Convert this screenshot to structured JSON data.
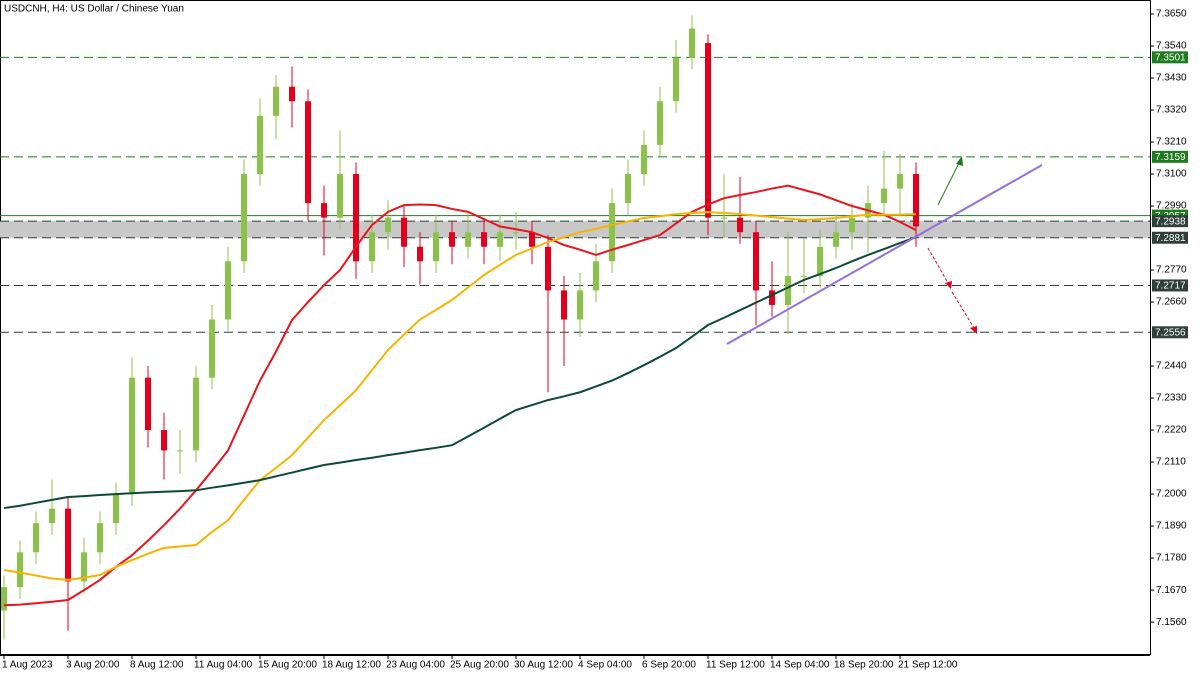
{
  "chart_data": {
    "type": "candlestick",
    "title": "USDCNH, H4:  US Dollar / Chinese Yuan",
    "categories": [
      "1 Aug 2023",
      null,
      null,
      null,
      "3 Aug 20:00",
      null,
      null,
      null,
      "8 Aug 12:00",
      null,
      null,
      null,
      "11 Aug 04:00",
      null,
      null,
      null,
      "15 Aug 20:00",
      null,
      null,
      null,
      "18 Aug 12:00",
      null,
      null,
      null,
      "23 Aug 04:00",
      null,
      null,
      null,
      "25 Aug 20:00",
      null,
      null,
      null,
      "30 Aug 12:00",
      null,
      null,
      null,
      "4 Sep 04:00",
      null,
      null,
      null,
      "6 Sep 20:00",
      null,
      null,
      null,
      "11 Sep 12:00",
      null,
      null,
      null,
      "14 Sep 04:00",
      null,
      null,
      null,
      "18 Sep 20:00",
      null,
      null,
      null,
      "21 Sep 12:00",
      null
    ],
    "open": [
      7.16,
      7.168,
      7.18,
      7.19,
      7.195,
      7.17,
      7.18,
      7.19,
      7.2,
      7.24,
      7.222,
      7.215,
      7.215,
      7.24,
      7.26,
      7.28,
      7.31,
      7.33,
      7.34,
      7.335,
      7.3,
      7.295,
      7.31,
      7.28,
      7.29,
      7.295,
      7.285,
      7.28,
      7.29,
      7.285,
      7.29,
      7.285,
      7.29,
      7.29,
      7.285,
      7.27,
      7.26,
      7.27,
      7.28,
      7.3,
      7.31,
      7.32,
      7.335,
      7.35,
      7.355,
      7.295,
      7.295,
      7.29,
      7.27,
      7.265,
      7.275,
      7.275,
      7.285,
      7.29,
      7.295,
      7.3,
      7.305,
      7.31
    ],
    "high": [
      7.172,
      7.184,
      7.194,
      7.205,
      7.199,
      7.185,
      7.194,
      7.204,
      7.247,
      7.244,
      7.228,
      7.222,
      7.244,
      7.265,
      7.285,
      7.315,
      7.336,
      7.344,
      7.347,
      7.339,
      7.306,
      7.325,
      7.314,
      7.296,
      7.301,
      7.299,
      7.29,
      7.296,
      7.294,
      7.297,
      7.295,
      7.296,
      7.297,
      7.294,
      7.289,
      7.275,
      7.276,
      7.286,
      7.305,
      7.315,
      7.325,
      7.34,
      7.356,
      7.3645,
      7.358,
      7.31,
      7.309,
      7.294,
      7.28,
      7.29,
      7.288,
      7.291,
      7.296,
      7.3,
      7.306,
      7.318,
      7.317,
      7.314
    ],
    "low": [
      7.15,
      7.164,
      7.176,
      7.186,
      7.153,
      7.166,
      7.176,
      7.186,
      7.196,
      7.216,
      7.205,
      7.207,
      7.211,
      7.236,
      7.256,
      7.276,
      7.306,
      7.322,
      7.326,
      7.294,
      7.282,
      7.291,
      7.274,
      7.276,
      7.284,
      7.278,
      7.272,
      7.276,
      7.279,
      7.281,
      7.279,
      7.28,
      7.284,
      7.279,
      7.235,
      7.244,
      7.254,
      7.266,
      7.276,
      7.296,
      7.306,
      7.316,
      7.331,
      7.346,
      7.289,
      7.288,
      7.286,
      7.258,
      7.261,
      7.255,
      7.269,
      7.271,
      7.281,
      7.284,
      7.283,
      7.296,
      7.296,
      7.285
    ],
    "close": [
      7.168,
      7.18,
      7.19,
      7.195,
      7.17,
      7.18,
      7.19,
      7.2,
      7.24,
      7.222,
      7.215,
      7.215,
      7.24,
      7.26,
      7.28,
      7.31,
      7.33,
      7.34,
      7.335,
      7.3,
      7.295,
      7.31,
      7.28,
      7.29,
      7.295,
      7.285,
      7.28,
      7.29,
      7.285,
      7.29,
      7.285,
      7.29,
      7.29,
      7.285,
      7.27,
      7.26,
      7.27,
      7.28,
      7.3,
      7.31,
      7.32,
      7.335,
      7.35,
      7.36,
      7.295,
      7.295,
      7.29,
      7.27,
      7.265,
      7.275,
      7.275,
      7.285,
      7.29,
      7.295,
      7.3,
      7.305,
      7.31,
      7.292
    ],
    "up_color": "#8bc34a",
    "down_color": "#e0001b",
    "series": [
      {
        "color": "#e8141e",
        "values": [
          7.1618,
          7.162,
          7.1625,
          7.163,
          7.1636,
          7.167,
          7.1705,
          7.175,
          7.179,
          7.184,
          7.1893,
          7.195,
          7.2013,
          7.208,
          7.215,
          7.227,
          7.239,
          7.249,
          7.2598,
          7.266,
          7.2718,
          7.277,
          7.285,
          7.2925,
          7.297,
          7.2993,
          7.2995,
          7.2993,
          7.298,
          7.297,
          7.2945,
          7.292,
          7.291,
          7.29,
          7.288,
          7.2856,
          7.284,
          7.2822,
          7.284,
          7.2856,
          7.2873,
          7.289,
          7.293,
          7.297,
          7.2995,
          7.3017,
          7.3028,
          7.3038,
          7.305,
          7.306,
          7.3045,
          7.303,
          7.301,
          7.299,
          7.2975,
          7.296,
          7.2935,
          7.2907
        ]
      },
      {
        "color": "#f5b400",
        "values": [
          7.1739,
          7.173,
          7.172,
          7.171,
          7.1705,
          7.1713,
          7.1722,
          7.175,
          7.1773,
          7.1795,
          7.1815,
          7.182,
          7.1825,
          7.187,
          7.191,
          7.198,
          7.2048,
          7.209,
          7.2134,
          7.2194,
          7.2254,
          7.2305,
          7.2357,
          7.2426,
          7.2495,
          7.2548,
          7.26,
          7.2633,
          7.2667,
          7.271,
          7.2753,
          7.2788,
          7.2822,
          7.2844,
          7.2866,
          7.2883,
          7.29,
          7.2912,
          7.2925,
          7.2937,
          7.2949,
          7.2955,
          7.2962,
          7.2966,
          7.2969,
          7.2966,
          7.2962,
          7.2957,
          7.2952,
          7.2947,
          7.2942,
          7.2945,
          7.2949,
          7.2955,
          7.296,
          7.296,
          7.296,
          7.2962
        ]
      },
      {
        "color": "#0d4a33",
        "values": [
          7.1952,
          7.196,
          7.197,
          7.198,
          7.199,
          7.1993,
          7.1997,
          7.2,
          7.2003,
          7.2006,
          7.2008,
          7.201,
          7.2013,
          7.2022,
          7.203,
          7.2039,
          7.2048,
          7.2061,
          7.2074,
          7.2087,
          7.21,
          7.2108,
          7.2117,
          7.2125,
          7.2134,
          7.2142,
          7.2151,
          7.2159,
          7.2168,
          7.2198,
          7.2228,
          7.2259,
          7.2289,
          7.2306,
          7.2323,
          7.2336,
          7.235,
          7.237,
          7.239,
          7.2416,
          7.2443,
          7.2472,
          7.2502,
          7.2541,
          7.2581,
          7.2606,
          7.2632,
          7.2658,
          7.2684,
          7.271,
          7.2736,
          7.2756,
          7.2777,
          7.28,
          7.2822,
          7.2842,
          7.2863,
          7.2883
        ]
      }
    ],
    "ylim": [
      7.1447,
      7.3698
    ],
    "yticks": [
      {
        "value": 7.365,
        "label": "7.3650"
      },
      {
        "value": 7.354,
        "label": "7.3540"
      },
      {
        "value": 7.343,
        "label": "7.3430"
      },
      {
        "value": 7.332,
        "label": "7.3320"
      },
      {
        "value": 7.321,
        "label": "7.3210"
      },
      {
        "value": 7.31,
        "label": "7.3100"
      },
      {
        "value": 7.299,
        "label": "7.2990"
      },
      {
        "value": 7.277,
        "label": "7.2770"
      },
      {
        "value": 7.266,
        "label": "7.2660"
      },
      {
        "value": 7.244,
        "label": "7.2440"
      },
      {
        "value": 7.233,
        "label": "7.2330"
      },
      {
        "value": 7.222,
        "label": "7.2220"
      },
      {
        "value": 7.211,
        "label": "7.2110"
      },
      {
        "value": 7.2,
        "label": "7.2000"
      },
      {
        "value": 7.189,
        "label": "7.1890"
      },
      {
        "value": 7.178,
        "label": "7.1780"
      },
      {
        "value": 7.167,
        "label": "7.1670"
      },
      {
        "value": 7.156,
        "label": "7.1560"
      }
    ],
    "levels": [
      7.3501,
      7.3159,
      7.2957,
      7.2938,
      7.2881,
      7.2717,
      7.2556
    ],
    "level_colors": [
      "#1e7b1e",
      "#1e7b1e",
      "#1e7b1e",
      "#2f3f3a",
      "#2f3f3a",
      "#2f3f3a",
      "#2f3f3a"
    ],
    "level_styles": [
      "dashed",
      "dashed",
      "solid",
      "dashed",
      "dashed",
      "dashed",
      "dashed"
    ],
    "zone": [
      7.2938,
      7.2881
    ],
    "zone_color": "#c8c8c8"
  }
}
